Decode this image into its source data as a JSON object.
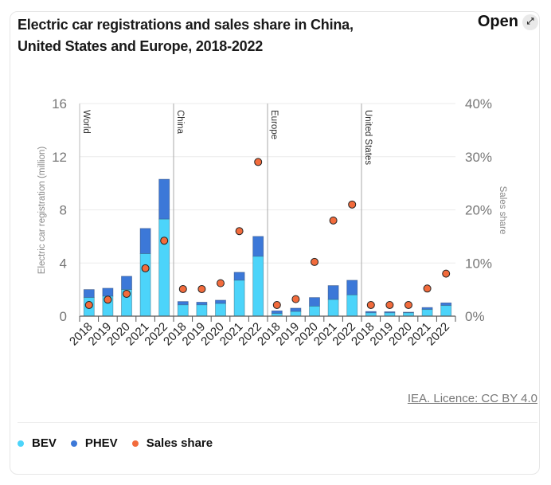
{
  "header": {
    "title": "Electric car registrations and sales share in China, United States and Europe, 2018-2022",
    "open_label": "Open",
    "open_icon": "expand-arrows-icon"
  },
  "footer": {
    "licence": "IEA. Licence: CC BY 4.0"
  },
  "legend": [
    {
      "label": "BEV",
      "color": "#4cd4fa"
    },
    {
      "label": "PHEV",
      "color": "#3c78d8"
    },
    {
      "label": "Sales share",
      "color": "#f26b3c"
    }
  ],
  "chart_data": {
    "type": "bar",
    "title": "Electric car registrations and sales share in China, United States and Europe, 2018-2022",
    "ylabel": "Electric car registration (million)",
    "y2label": "Sales share",
    "ylim": [
      0,
      16
    ],
    "y2lim": [
      0,
      40
    ],
    "yticks": [
      "0",
      "4",
      "8",
      "12",
      "16"
    ],
    "y2ticks": [
      "0%",
      "10%",
      "20%",
      "30%",
      "40%"
    ],
    "grid": true,
    "legend_position": "bottom-left",
    "colors": {
      "BEV": "#4cd4fa",
      "PHEV": "#3c78d8",
      "Sales share": "#f26b3c"
    },
    "groups": [
      {
        "name": "World",
        "categories": [
          "2018",
          "2019",
          "2020",
          "2021",
          "2022"
        ],
        "BEV": [
          1.4,
          1.5,
          2.0,
          4.7,
          7.3
        ],
        "PHEV": [
          0.6,
          0.6,
          1.0,
          1.9,
          3.0
        ],
        "sales_share": [
          2.1,
          3.1,
          4.2,
          9.0,
          14.2
        ]
      },
      {
        "name": "China",
        "categories": [
          "2018",
          "2019",
          "2020",
          "2021",
          "2022"
        ],
        "BEV": [
          0.85,
          0.85,
          0.95,
          2.7,
          4.5
        ],
        "PHEV": [
          0.25,
          0.2,
          0.25,
          0.6,
          1.5
        ],
        "sales_share": [
          5.1,
          5.1,
          6.2,
          16.0,
          29.0
        ]
      },
      {
        "name": "Europe",
        "categories": [
          "2018",
          "2019",
          "2020",
          "2021",
          "2022"
        ],
        "BEV": [
          0.2,
          0.35,
          0.75,
          1.25,
          1.6
        ],
        "PHEV": [
          0.2,
          0.25,
          0.65,
          1.05,
          1.1
        ],
        "sales_share": [
          2.1,
          3.2,
          10.2,
          18.0,
          21.0
        ]
      },
      {
        "name": "United States",
        "categories": [
          "2018",
          "2019",
          "2020",
          "2021",
          "2022"
        ],
        "BEV": [
          0.25,
          0.25,
          0.25,
          0.5,
          0.8
        ],
        "PHEV": [
          0.1,
          0.08,
          0.05,
          0.15,
          0.2
        ],
        "sales_share": [
          2.1,
          2.1,
          2.1,
          5.2,
          8.0
        ]
      }
    ]
  }
}
